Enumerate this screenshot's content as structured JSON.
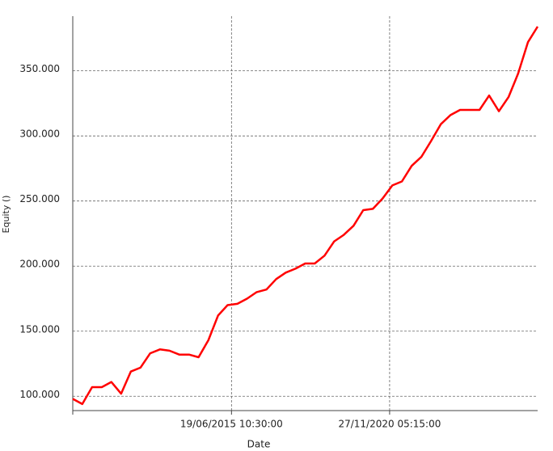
{
  "chart_data": {
    "type": "line",
    "x_label": "Date",
    "y_label": "Equity ()",
    "x": [
      "2010-01",
      "2010-05",
      "2010-09",
      "2011-01",
      "2011-05",
      "2011-09",
      "2012-01",
      "2012-05",
      "2012-09",
      "2013-01",
      "2013-05",
      "2013-09",
      "2014-01",
      "2014-05",
      "2014-09",
      "2015-01",
      "2015-05",
      "2015-09",
      "2016-01",
      "2016-05",
      "2016-09",
      "2017-01",
      "2017-05",
      "2017-09",
      "2018-01",
      "2018-05",
      "2018-09",
      "2019-01",
      "2019-05",
      "2019-09",
      "2020-01",
      "2020-05",
      "2020-09",
      "2021-01",
      "2021-05",
      "2021-09",
      "2022-01",
      "2022-05",
      "2022-09",
      "2023-01",
      "2023-05",
      "2023-09",
      "2024-01",
      "2024-05",
      "2024-09",
      "2025-01",
      "2025-05",
      "2025-09",
      "2026-01"
    ],
    "series": [
      {
        "name": "Equity",
        "color": "#ff0000",
        "values": [
          98000,
          94000,
          107000,
          107000,
          111000,
          102000,
          119000,
          122000,
          133000,
          136000,
          135000,
          132000,
          132000,
          130000,
          143000,
          162000,
          170000,
          171000,
          175000,
          180000,
          182000,
          190000,
          195000,
          198000,
          202000,
          202000,
          208000,
          219000,
          224000,
          231000,
          243000,
          244000,
          252000,
          262000,
          265000,
          277000,
          284000,
          296000,
          309000,
          316000,
          320000,
          320000,
          320000,
          331000,
          319000,
          330000,
          348000,
          372000,
          384000
        ]
      }
    ],
    "xlim": [
      "2010-01",
      "2026-01"
    ],
    "xticks": [
      {
        "value": "2015-06-19T10:30:00",
        "label": "19/06/2015 10:30:00"
      },
      {
        "value": "2020-11-27T05:15:00",
        "label": "27/11/2020 05:15:00"
      }
    ],
    "ylim": [
      89000,
      392000
    ],
    "yticks": [
      {
        "value": 100000,
        "label": "100.000"
      },
      {
        "value": 150000,
        "label": "150.000"
      },
      {
        "value": 200000,
        "label": "200.000"
      },
      {
        "value": 250000,
        "label": "250.000"
      },
      {
        "value": 300000,
        "label": "300.000"
      },
      {
        "value": 350000,
        "label": "350.000"
      }
    ],
    "grid": true
  }
}
